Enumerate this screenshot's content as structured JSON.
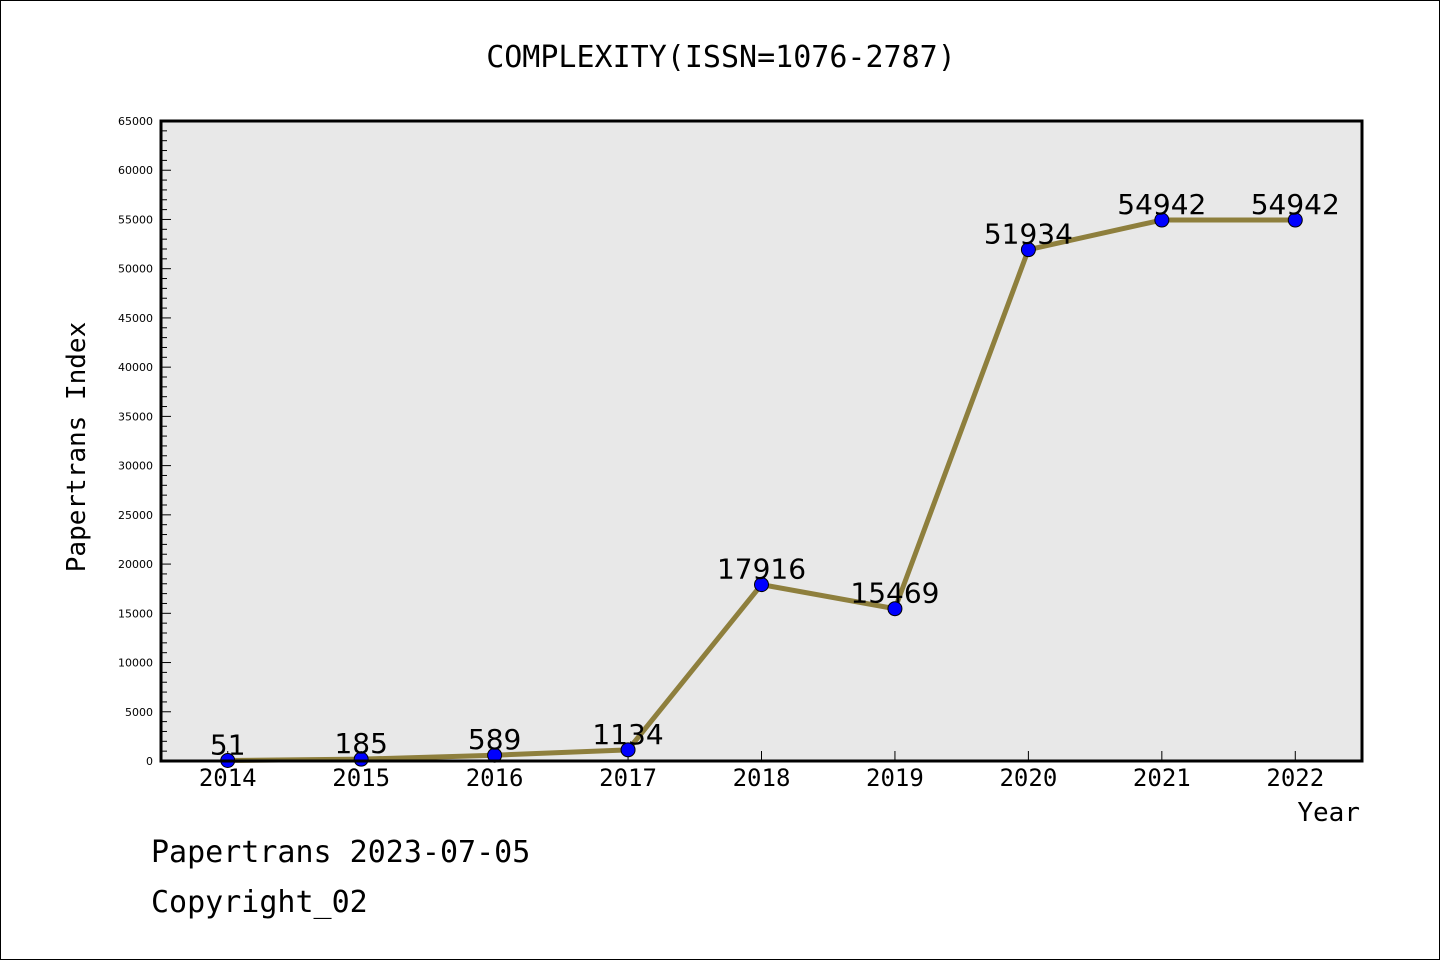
{
  "chart_data": {
    "type": "line",
    "title": "COMPLEXITY(ISSN=1076-2787)",
    "xlabel": "Year",
    "ylabel": "Papertrans Index",
    "categories": [
      "2014",
      "2015",
      "2016",
      "2017",
      "2018",
      "2019",
      "2020",
      "2021",
      "2022"
    ],
    "series": [
      {
        "values": [
          51,
          185,
          589,
          1134,
          17916,
          15469,
          51934,
          54942,
          54942
        ],
        "data_labels": [
          "51",
          "185",
          "589",
          "1134",
          "17916",
          "15469",
          "51934",
          "54942",
          "54942"
        ]
      }
    ],
    "ylim": [
      0,
      65000
    ],
    "yticks": [
      0,
      5000,
      10000,
      15000,
      20000,
      25000,
      30000,
      35000,
      40000,
      45000,
      50000,
      55000,
      60000,
      65000
    ],
    "ytick_labels": [
      "0",
      "5000",
      "10000",
      "15000",
      "20000",
      "25000",
      "30000",
      "35000",
      "40000",
      "45000",
      "50000",
      "55000",
      "60000",
      "65000"
    ],
    "grid": false,
    "colors": {
      "line": "#8e7f3d",
      "marker": "#0000ff",
      "plot_background": "#e8e8e8"
    }
  },
  "footer": {
    "line1": "Papertrans 2023-07-05",
    "line2": "Copyright_02"
  }
}
